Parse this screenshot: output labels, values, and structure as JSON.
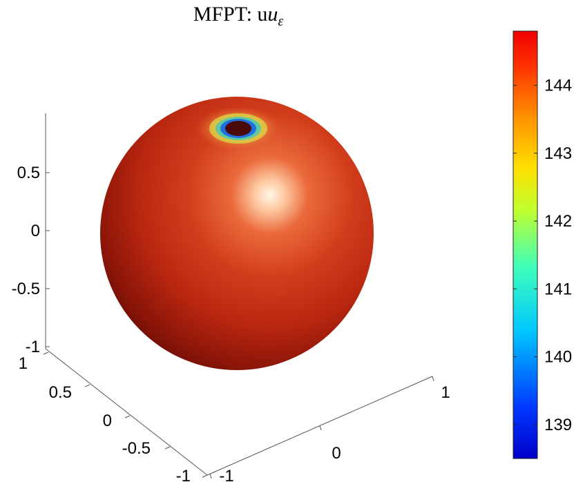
{
  "chart_data": {
    "type": "surface",
    "title": "MFPT: u",
    "title_subscript": "ε",
    "xlabel": "",
    "ylabel": "",
    "zlabel": "",
    "z_ticks": [
      "0.5",
      "0",
      "-0.5",
      "-1"
    ],
    "y_ticks": [
      "1",
      "0.5",
      "0",
      "-0.5",
      "-1"
    ],
    "x_ticks": [
      "1",
      "0",
      "-1"
    ],
    "xlim": [
      -1,
      1
    ],
    "ylim": [
      -1,
      1
    ],
    "zlim": [
      -1,
      1
    ],
    "surface": "unit sphere",
    "low_spot": "near top",
    "colorbar": {
      "min": 138.5,
      "max": 144.8,
      "ticks": [
        144,
        143,
        142,
        141,
        140,
        139
      ],
      "colormap": "jet"
    },
    "colors": {
      "sphere_base": "#c8260f",
      "spot_core": "#4a0a0a",
      "spot_ring": "#1e6fe0"
    }
  }
}
